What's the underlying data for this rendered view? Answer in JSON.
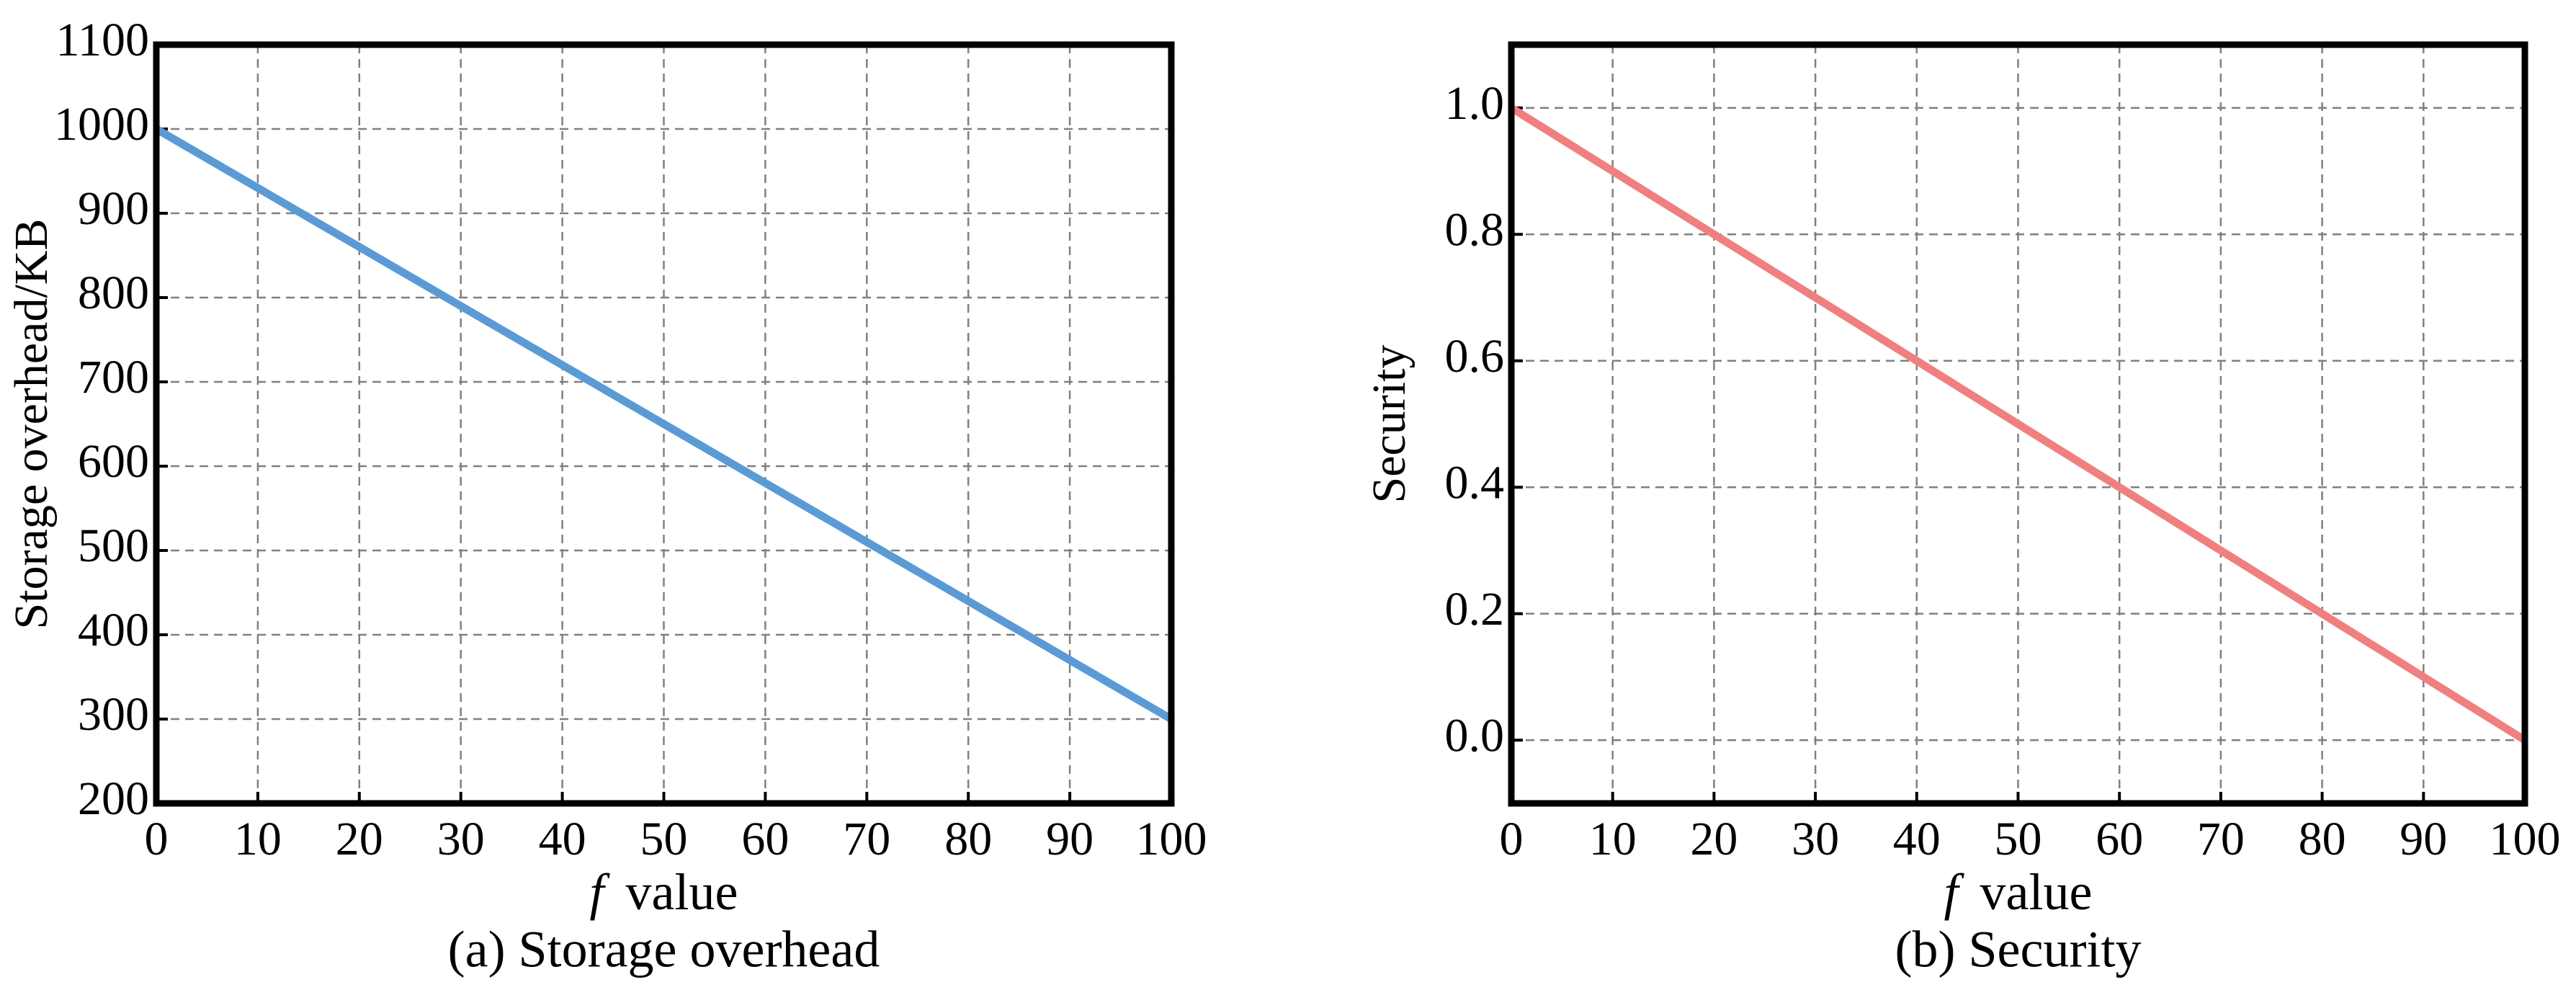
{
  "chart_data": [
    {
      "type": "line",
      "ylabel": "Storage overhead/KB",
      "xlabel_var": "f",
      "xlabel": "value",
      "caption": "(a) Storage overhead",
      "x": [
        0,
        10,
        20,
        30,
        40,
        50,
        60,
        70,
        80,
        90,
        100
      ],
      "values": [
        1000,
        930,
        860,
        790,
        720,
        650,
        580,
        510,
        440,
        370,
        300
      ],
      "color": "#5b9bd5",
      "xlim": [
        0,
        100
      ],
      "xticks": [
        0,
        10,
        20,
        30,
        40,
        50,
        60,
        70,
        80,
        90,
        100
      ],
      "ylim": [
        200,
        1100
      ],
      "yticks": [
        200,
        300,
        400,
        500,
        600,
        700,
        800,
        900,
        1000,
        1100
      ],
      "grid": true
    },
    {
      "type": "line",
      "ylabel": "Security",
      "xlabel_var": "f",
      "xlabel": "value",
      "caption": "(b) Security",
      "x": [
        0,
        10,
        20,
        30,
        40,
        50,
        60,
        70,
        80,
        90,
        100
      ],
      "values": [
        1.0,
        0.9,
        0.8,
        0.7,
        0.6,
        0.5,
        0.4,
        0.3,
        0.2,
        0.1,
        0.0
      ],
      "color": "#f08080",
      "xlim": [
        0,
        100
      ],
      "xticks": [
        0,
        10,
        20,
        30,
        40,
        50,
        60,
        70,
        80,
        90,
        100
      ],
      "ylim": [
        -0.1,
        1.1
      ],
      "yticks": [
        {
          "value": 0,
          "label": "0.0"
        },
        0.2,
        0.4,
        0.6,
        0.8,
        {
          "value": 1,
          "label": "1.0"
        }
      ],
      "grid": true
    }
  ]
}
